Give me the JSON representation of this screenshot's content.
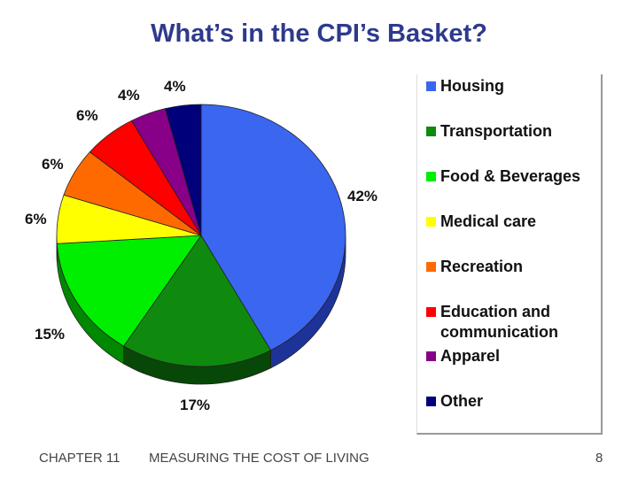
{
  "title": "What’s in the CPI’s Basket?",
  "chart_data": {
    "type": "pie",
    "slices": [
      {
        "name": "Housing",
        "value": 42,
        "label": "42%",
        "color": "#3a66f0",
        "side": "#1e3399"
      },
      {
        "name": "Transportation",
        "value": 17,
        "label": "17%",
        "color": "#0f8a0f",
        "side": "#074707"
      },
      {
        "name": "Food & Beverages",
        "value": 15,
        "label": "15%",
        "color": "#00ee00",
        "side": "#008800"
      },
      {
        "name": "Medical care",
        "value": 6,
        "label": "6%",
        "color": "#ffff00",
        "side": "#9c9c00"
      },
      {
        "name": "Recreation",
        "value": 6,
        "label": "6%",
        "color": "#ff6a00",
        "side": "#993f00"
      },
      {
        "name": "Education and communication",
        "value": 6,
        "label": "6%",
        "color": "#ff0000",
        "side": "#990000"
      },
      {
        "name": "Apparel",
        "value": 4,
        "label": "4%",
        "color": "#880088",
        "side": "#4a004a"
      },
      {
        "name": "Other",
        "value": 4,
        "label": "4%",
        "color": "#00007a",
        "side": "#000040"
      }
    ]
  },
  "legend": {
    "items": [
      {
        "line1": "Housing",
        "line2": "",
        "color": "#3a66f0"
      },
      {
        "line1": "Transportation",
        "line2": "",
        "color": "#0f8a0f"
      },
      {
        "line1": "Food & Beverages",
        "line2": "",
        "color": "#00ee00"
      },
      {
        "line1": "Medical care",
        "line2": "",
        "color": "#ffff00"
      },
      {
        "line1": "Recreation",
        "line2": "",
        "color": "#ff6a00"
      },
      {
        "line1": "Education and",
        "line2": "communication",
        "color": "#ff0000"
      },
      {
        "line1": "Apparel",
        "line2": "",
        "color": "#880088"
      },
      {
        "line1": "Other",
        "line2": "",
        "color": "#00007a"
      }
    ]
  },
  "footer": {
    "chapter": "CHAPTER 11",
    "section": "MEASURING THE COST OF LIVING",
    "page": "8"
  }
}
